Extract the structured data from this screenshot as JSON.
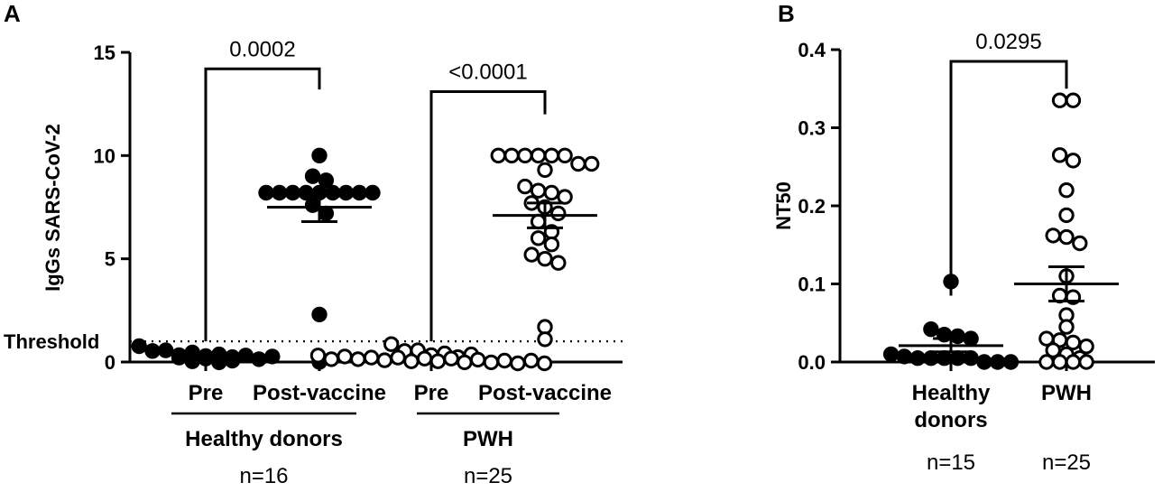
{
  "chart_data": [
    {
      "panel": "A",
      "type": "scatter",
      "ylabel": "IgGs SARS-CoV-2",
      "ylim": [
        0,
        15
      ],
      "yticks": [
        0,
        5,
        10,
        15
      ],
      "threshold": {
        "label": "Threshold",
        "value": 1
      },
      "categories": [
        "Pre",
        "Post-vaccine",
        "Pre",
        "Post-vaccine"
      ],
      "groups": [
        {
          "label": "Healthy donors",
          "n_label": "n=16",
          "categories": [
            0,
            1
          ]
        },
        {
          "label": "PWH",
          "n_label": "n=25",
          "categories": [
            2,
            3
          ]
        }
      ],
      "series": [
        {
          "category": 0,
          "filled": true,
          "values": [
            0.0,
            0.05,
            0.1,
            0.1,
            0.15,
            0.2,
            0.2,
            0.25,
            0.3,
            0.3,
            0.35,
            0.4,
            0.4,
            0.5,
            0.6,
            0.7
          ]
        },
        {
          "category": 1,
          "filled": true,
          "mean": 7.5,
          "sem": [
            6.8,
            8.1
          ],
          "values": [
            10.0,
            9.0,
            8.8,
            8.2,
            8.2,
            8.2,
            8.2,
            8.2,
            8.2,
            8.2,
            8.2,
            8.2,
            7.6,
            7.2,
            2.3,
            0.0
          ]
        },
        {
          "category": 2,
          "filled": false,
          "values": [
            0.0,
            0.0,
            0.0,
            0.0,
            0.05,
            0.05,
            0.05,
            0.1,
            0.1,
            0.1,
            0.1,
            0.15,
            0.15,
            0.15,
            0.2,
            0.2,
            0.2,
            0.25,
            0.3,
            0.3,
            0.35,
            0.4,
            0.5,
            0.6,
            0.8
          ]
        },
        {
          "category": 3,
          "filled": false,
          "mean": 7.1,
          "sem": [
            6.5,
            7.7
          ],
          "values": [
            10.0,
            10.0,
            10.0,
            10.0,
            10.0,
            10.0,
            9.6,
            9.6,
            9.3,
            8.5,
            8.3,
            8.2,
            8.0,
            7.7,
            7.5,
            7.2,
            6.8,
            6.3,
            6.0,
            5.7,
            5.2,
            5.0,
            4.8,
            1.7,
            1.1
          ]
        }
      ],
      "comparisons": [
        {
          "from": 0,
          "to": 1,
          "label": "0.0002",
          "y": 14.2
        },
        {
          "from": 2,
          "to": 3,
          "label": "<0.0001",
          "y": 13.1
        }
      ]
    },
    {
      "panel": "B",
      "type": "scatter",
      "ylabel": "NT50",
      "ylim": [
        0,
        0.4
      ],
      "yticks": [
        0.0,
        0.1,
        0.2,
        0.3,
        0.4
      ],
      "categories": [
        "Healthy donors",
        "PWH"
      ],
      "category_lines": [
        [
          "Healthy",
          "donors"
        ],
        [
          "PWH"
        ]
      ],
      "n_labels": [
        "n=15",
        "n=25"
      ],
      "series": [
        {
          "category": 0,
          "filled": true,
          "mean": 0.021,
          "sem": [
            0.013,
            0.03
          ],
          "values": [
            0.103,
            0.042,
            0.035,
            0.033,
            0.03,
            0.01,
            0.007,
            0.005,
            0.005,
            0.005,
            0.005,
            0.005,
            0.0,
            0.0,
            0.0
          ]
        },
        {
          "category": 1,
          "filled": false,
          "mean": 0.1,
          "sem": [
            0.078,
            0.122
          ],
          "values": [
            0.335,
            0.335,
            0.265,
            0.258,
            0.22,
            0.188,
            0.162,
            0.16,
            0.152,
            0.11,
            0.085,
            0.083,
            0.06,
            0.045,
            0.03,
            0.028,
            0.025,
            0.02,
            0.015,
            0.01,
            0.005,
            0.0,
            0.0,
            0.0,
            0.0
          ]
        }
      ],
      "comparisons": [
        {
          "from": 0,
          "to": 1,
          "label": "0.0295",
          "y": 0.385
        }
      ]
    }
  ]
}
